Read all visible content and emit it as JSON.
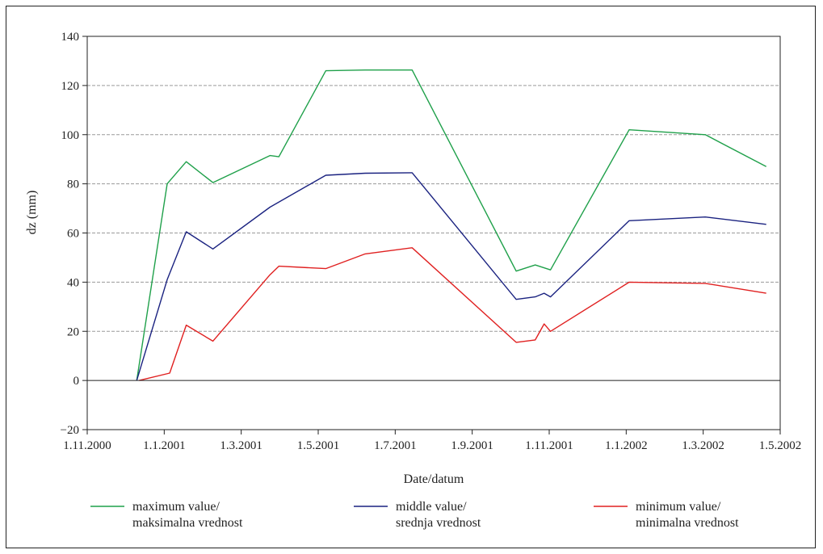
{
  "chart_data": {
    "type": "line",
    "xlabel": "Date/datum",
    "ylabel": "dz (mm)",
    "ylim": [
      -20,
      140
    ],
    "y_ticks": [
      -20,
      0,
      20,
      40,
      60,
      80,
      100,
      120,
      140
    ],
    "x_ticks": [
      "1.11.2000",
      "1.1.2001",
      "1.3.2001",
      "1.5.2001",
      "1.7.2001",
      "1.9.2001",
      "1.11.2001",
      "1.1.2002",
      "1.3.2002",
      "1.5.2002"
    ],
    "xlim": [
      "2000-11-01",
      "2002-05-01"
    ],
    "grid": "horizontal dashed",
    "legend_position": "bottom",
    "series": [
      {
        "name": "maximum value/ maksimalna vrednost",
        "legend_lines": [
          "maximum value/",
          "maksimalna vrednost"
        ],
        "color": "#1fa04a",
        "points": [
          [
            "2000-12-10",
            0
          ],
          [
            "2001-01-03",
            80
          ],
          [
            "2001-01-18",
            89
          ],
          [
            "2001-02-08",
            80.5
          ],
          [
            "2001-03-25",
            91.5
          ],
          [
            "2001-04-01",
            91
          ],
          [
            "2001-05-08",
            126
          ],
          [
            "2001-06-08",
            126.3
          ],
          [
            "2001-07-15",
            126.3
          ],
          [
            "2001-10-05",
            44.5
          ],
          [
            "2001-10-20",
            47
          ],
          [
            "2001-11-01",
            45
          ],
          [
            "2002-01-02",
            102
          ],
          [
            "2002-03-03",
            100
          ],
          [
            "2002-04-20",
            87
          ]
        ]
      },
      {
        "name": "middle value/ srednja vrednost",
        "legend_lines": [
          "middle value/",
          "srednja vrednost"
        ],
        "color": "#1a2280",
        "points": [
          [
            "2000-12-10",
            0
          ],
          [
            "2001-01-03",
            41
          ],
          [
            "2001-01-18",
            60.5
          ],
          [
            "2001-02-08",
            53.5
          ],
          [
            "2001-03-25",
            70.5
          ],
          [
            "2001-05-08",
            83.5
          ],
          [
            "2001-06-08",
            84.3
          ],
          [
            "2001-07-15",
            84.5
          ],
          [
            "2001-10-05",
            33
          ],
          [
            "2001-10-20",
            34
          ],
          [
            "2001-10-27",
            35.5
          ],
          [
            "2001-11-01",
            34
          ],
          [
            "2002-01-02",
            65
          ],
          [
            "2002-03-03",
            66.5
          ],
          [
            "2002-04-20",
            63.5
          ]
        ]
      },
      {
        "name": "minimum value/ minimalna vrednost",
        "legend_lines": [
          "minimum value/",
          "minimalna vrednost"
        ],
        "color": "#e02020",
        "points": [
          [
            "2000-12-12",
            0
          ],
          [
            "2001-01-05",
            3
          ],
          [
            "2001-01-18",
            22.5
          ],
          [
            "2001-02-08",
            16
          ],
          [
            "2001-03-25",
            43
          ],
          [
            "2001-04-01",
            46.5
          ],
          [
            "2001-05-08",
            45.5
          ],
          [
            "2001-06-08",
            51.5
          ],
          [
            "2001-07-15",
            54
          ],
          [
            "2001-10-05",
            15.5
          ],
          [
            "2001-10-20",
            16.5
          ],
          [
            "2001-10-27",
            23
          ],
          [
            "2001-11-01",
            20
          ],
          [
            "2002-01-02",
            40
          ],
          [
            "2002-03-03",
            39.5
          ],
          [
            "2002-04-20",
            35.5
          ]
        ]
      }
    ]
  }
}
